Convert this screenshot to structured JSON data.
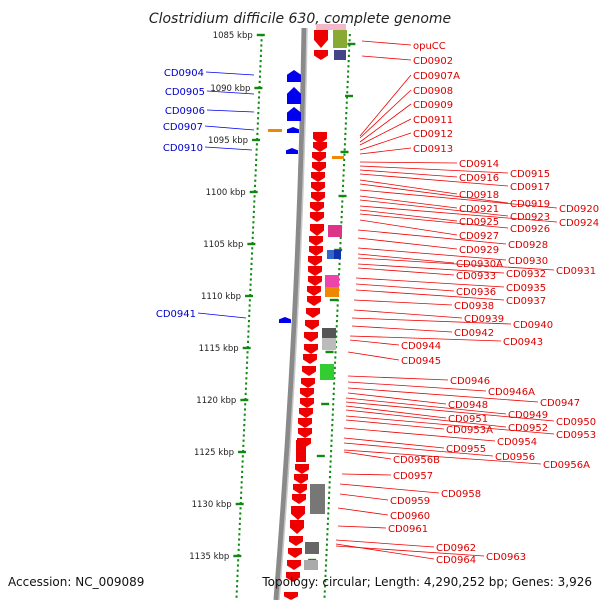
{
  "title": "Clostridium difficile 630, complete genome",
  "footer": {
    "accession": "Accession: NC_009089",
    "topology": "Topology: circular; Length: 4,290,252 bp; Genes: 3,926"
  },
  "colors": {
    "forward": "#0000ee",
    "reverse": "#ee0000",
    "scale": "#118811",
    "backbone": "#8a8a8a"
  },
  "kbp_ticks": [
    {
      "label": "1085 kbp"
    },
    {
      "label": "1090 kbp"
    },
    {
      "label": "1095 kbp"
    },
    {
      "label": "1100 kbp"
    },
    {
      "label": "1105 kbp"
    },
    {
      "label": "1110 kbp"
    },
    {
      "label": "1115 kbp"
    },
    {
      "label": "1120 kbp"
    },
    {
      "label": "1125 kbp"
    },
    {
      "label": "1130 kbp"
    },
    {
      "label": "1135 kbp"
    }
  ],
  "left_labels": [
    "CD0904",
    "CD0905",
    "CD0906",
    "CD0907",
    "CD0910",
    "CD0941"
  ],
  "right_labels": [
    "opuCC",
    "CD0902",
    "CD0907A",
    "CD0908",
    "CD0909",
    "CD0911",
    "CD0912",
    "CD0913",
    "CD0914",
    "CD0915",
    "CD0916",
    "CD0917",
    "CD0918",
    "CD0919",
    "CD0920",
    "CD0921",
    "CD0923",
    "CD0924",
    "CD0925",
    "CD0926",
    "CD0927",
    "CD0928",
    "CD0929",
    "CD0930",
    "CD0930A",
    "CD0931",
    "CD0932",
    "CD0933",
    "CD0935",
    "CD0936",
    "CD0937",
    "CD0938",
    "CD0939",
    "CD0940",
    "CD0942",
    "CD0943",
    "CD0944",
    "CD0945",
    "CD0946",
    "CD0946A",
    "CD0947",
    "CD0948",
    "CD0949",
    "CD0950",
    "CD0951",
    "CD0952",
    "CD0953",
    "CD0953A",
    "CD0954",
    "CD0955",
    "CD0956",
    "CD0956A",
    "CD0956B",
    "CD0957",
    "CD0958",
    "CD0959",
    "CD0960",
    "CD0961",
    "CD0962",
    "CD0963",
    "CD0964"
  ]
}
